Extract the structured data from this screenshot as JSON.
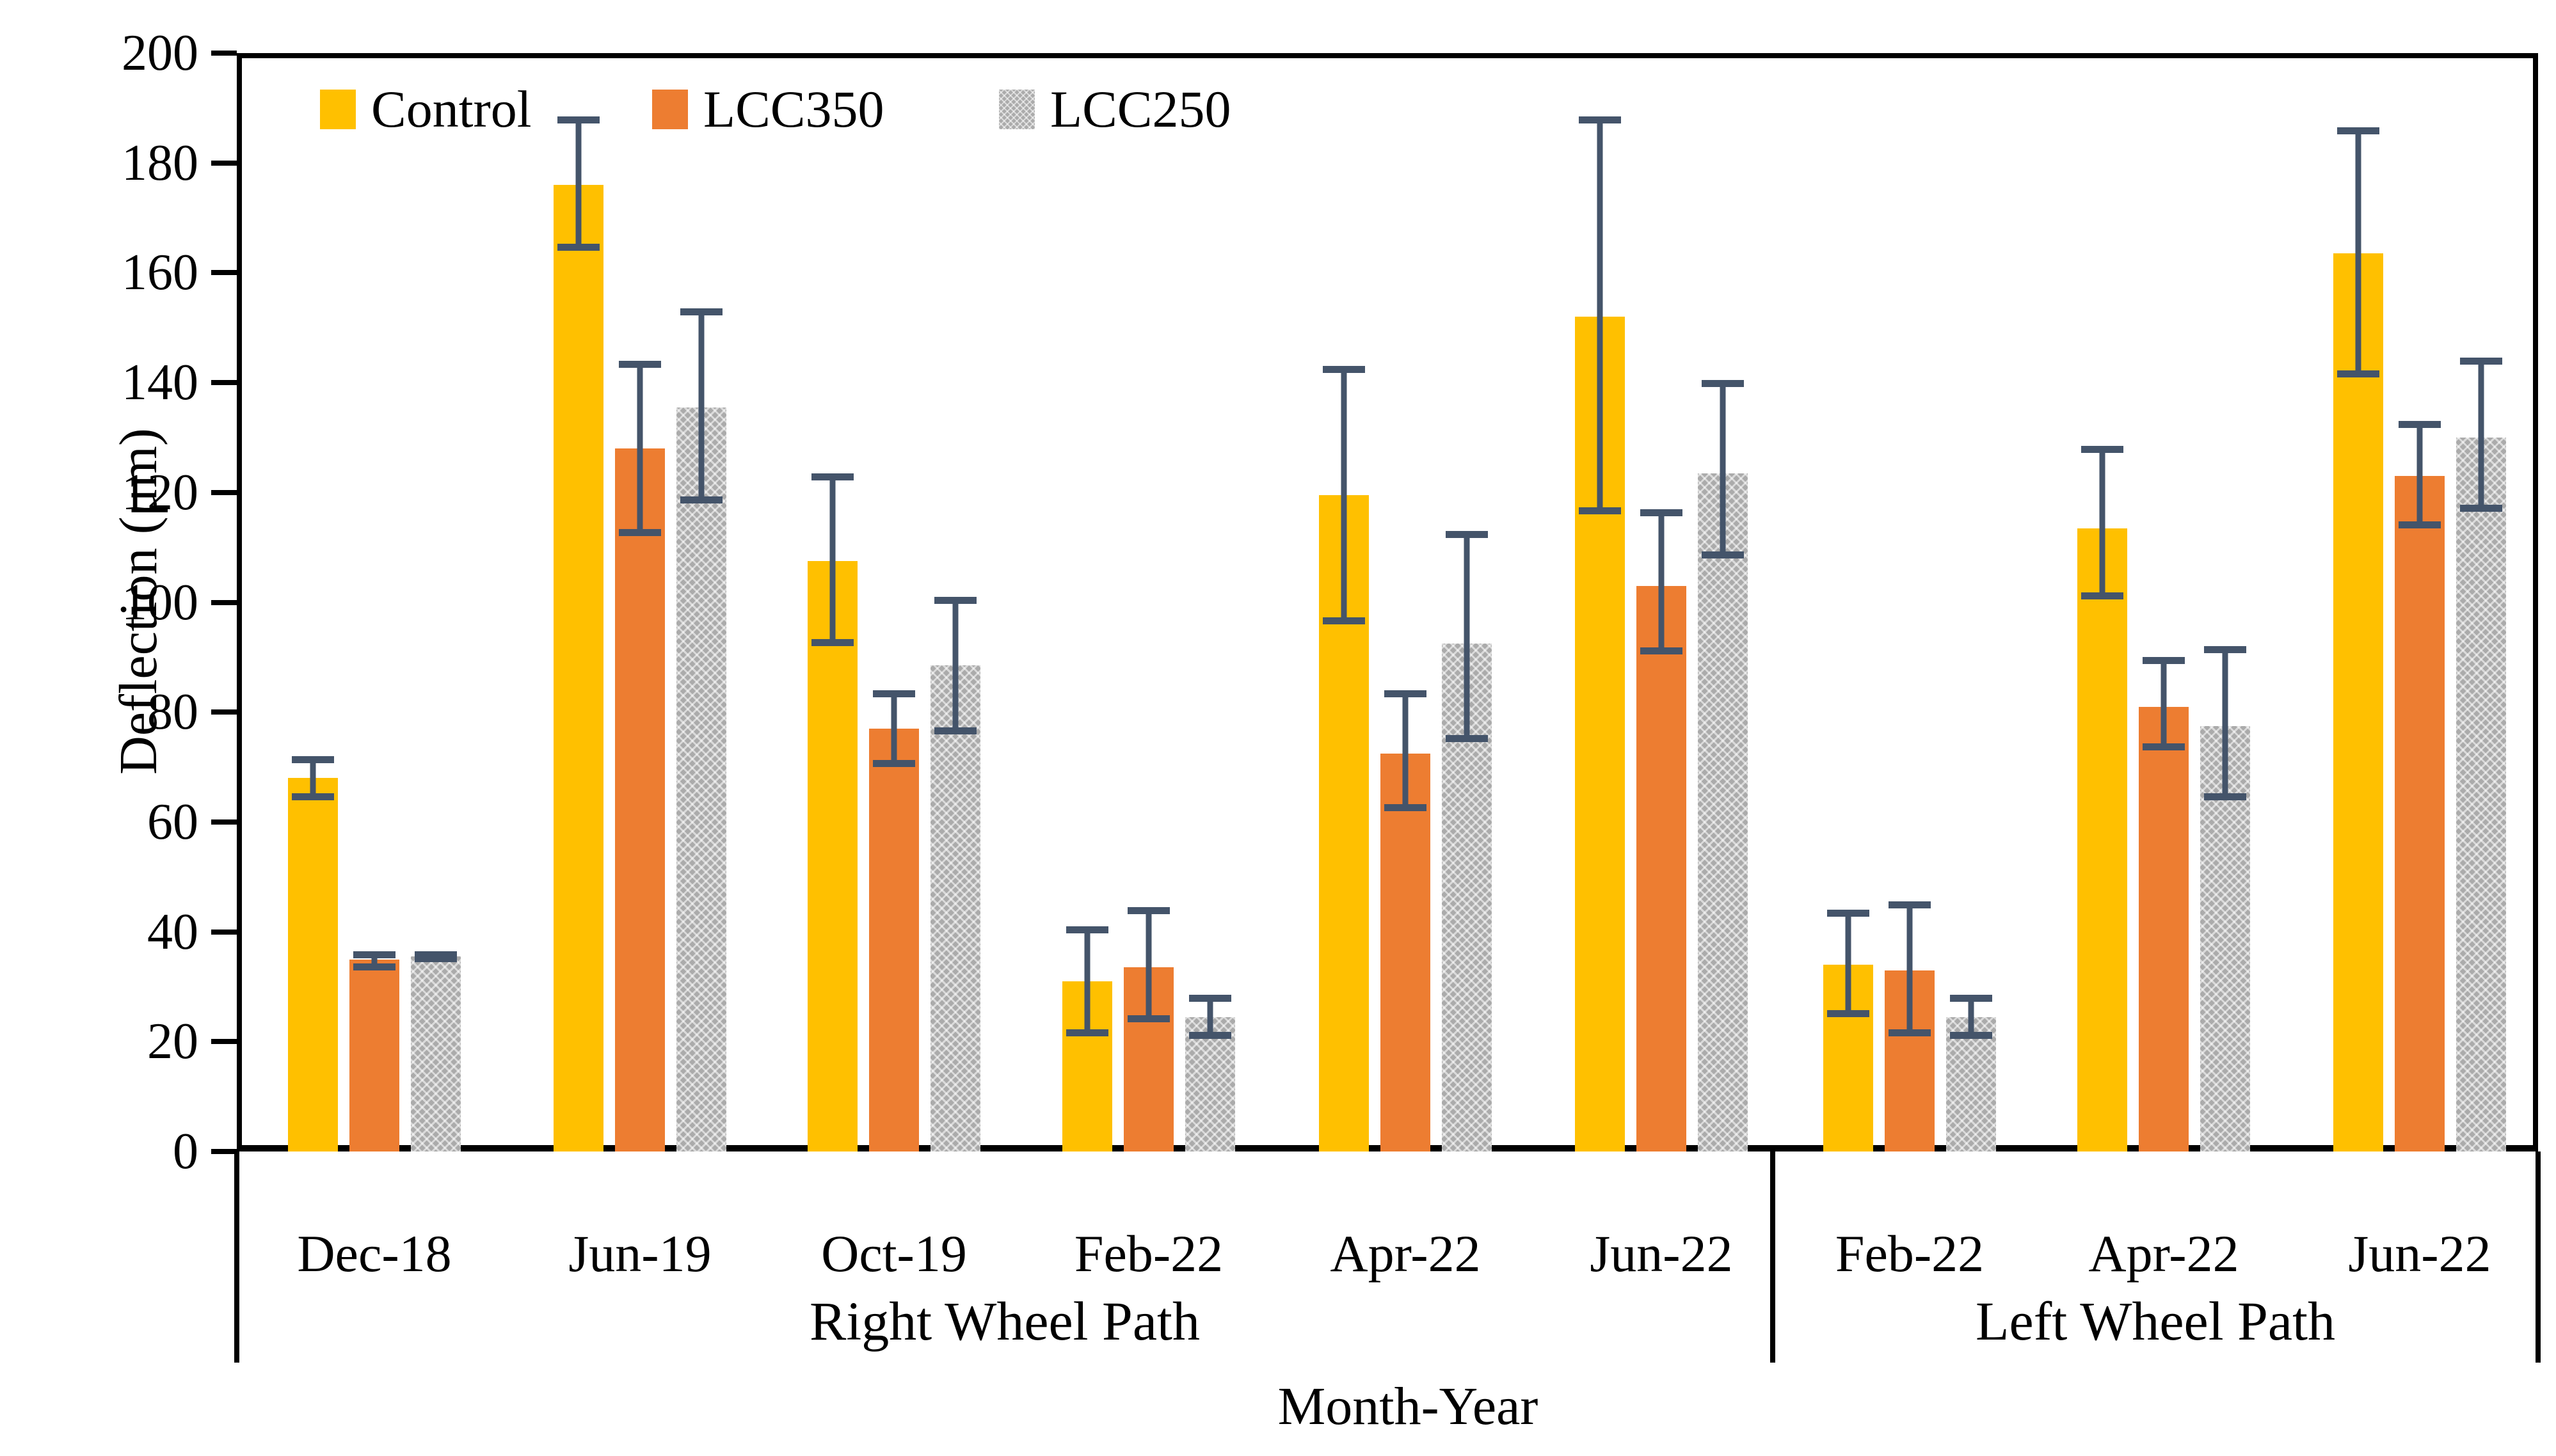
{
  "chart_data": {
    "type": "bar",
    "title": "",
    "ylabel": "Deflection (μm)",
    "xlabel": "Month-Year",
    "ylim": [
      0,
      200
    ],
    "ytick_step": 20,
    "ytick_labels": [
      "0",
      "20",
      "40",
      "60",
      "80",
      "100",
      "120",
      "140",
      "160",
      "180",
      "200"
    ],
    "grid": false,
    "legend_position": "top-left-inside",
    "error_bar_color": "#44546A",
    "axis_color": "#000000",
    "legend": [
      {
        "name": "Control",
        "color": "#FFC000",
        "pattern": "solid"
      },
      {
        "name": "LCC350",
        "color": "#ED7D31",
        "pattern": "solid"
      },
      {
        "name": "LCC250",
        "color": "#A6A6A6",
        "pattern": "crosshatch"
      }
    ],
    "sections": [
      {
        "label": "Right Wheel Path",
        "categories": [
          "Dec-18",
          "Jun-19",
          "Oct-19",
          "Feb-22",
          "Apr-22",
          "Jun-22"
        ],
        "series": [
          {
            "name": "Control",
            "values": [
              68,
              176,
              107.5,
              31,
              119.5,
              152
            ],
            "err_low": [
              64,
              164,
              92,
              21,
              96,
              116
            ],
            "err_high": [
              72,
              188.5,
              123.5,
              41,
              143,
              188.5
            ]
          },
          {
            "name": "LCC350",
            "values": [
              35,
              128,
              77,
              33.5,
              72.5,
              103
            ],
            "err_low": [
              33,
              112,
              70,
              23.5,
              62,
              90.5
            ],
            "err_high": [
              36.5,
              144,
              84,
              44.5,
              84,
              117
            ]
          },
          {
            "name": "LCC250",
            "values": [
              35.5,
              135.5,
              88.5,
              24.5,
              92.5,
              123.5
            ],
            "err_low": [
              34.5,
              118,
              76,
              20.5,
              74.5,
              108
            ],
            "err_high": [
              36.5,
              153.5,
              101,
              28.5,
              113,
              140.5
            ]
          }
        ]
      },
      {
        "label": "Left Wheel Path",
        "categories": [
          "Feb-22",
          "Apr-22",
          "Jun-22"
        ],
        "series": [
          {
            "name": "Control",
            "values": [
              34,
              113.5,
              163.5
            ],
            "err_low": [
              24.5,
              100.5,
              141
            ],
            "err_high": [
              44,
              128.5,
              186.5
            ]
          },
          {
            "name": "LCC350",
            "values": [
              33,
              81,
              123
            ],
            "err_low": [
              21,
              73,
              113.5
            ],
            "err_high": [
              45.5,
              90,
              133
            ]
          },
          {
            "name": "LCC250",
            "values": [
              24.5,
              77.5,
              130
            ],
            "err_low": [
              20.5,
              64,
              116.5
            ],
            "err_high": [
              28.5,
              92,
              144.5
            ]
          }
        ]
      }
    ]
  }
}
